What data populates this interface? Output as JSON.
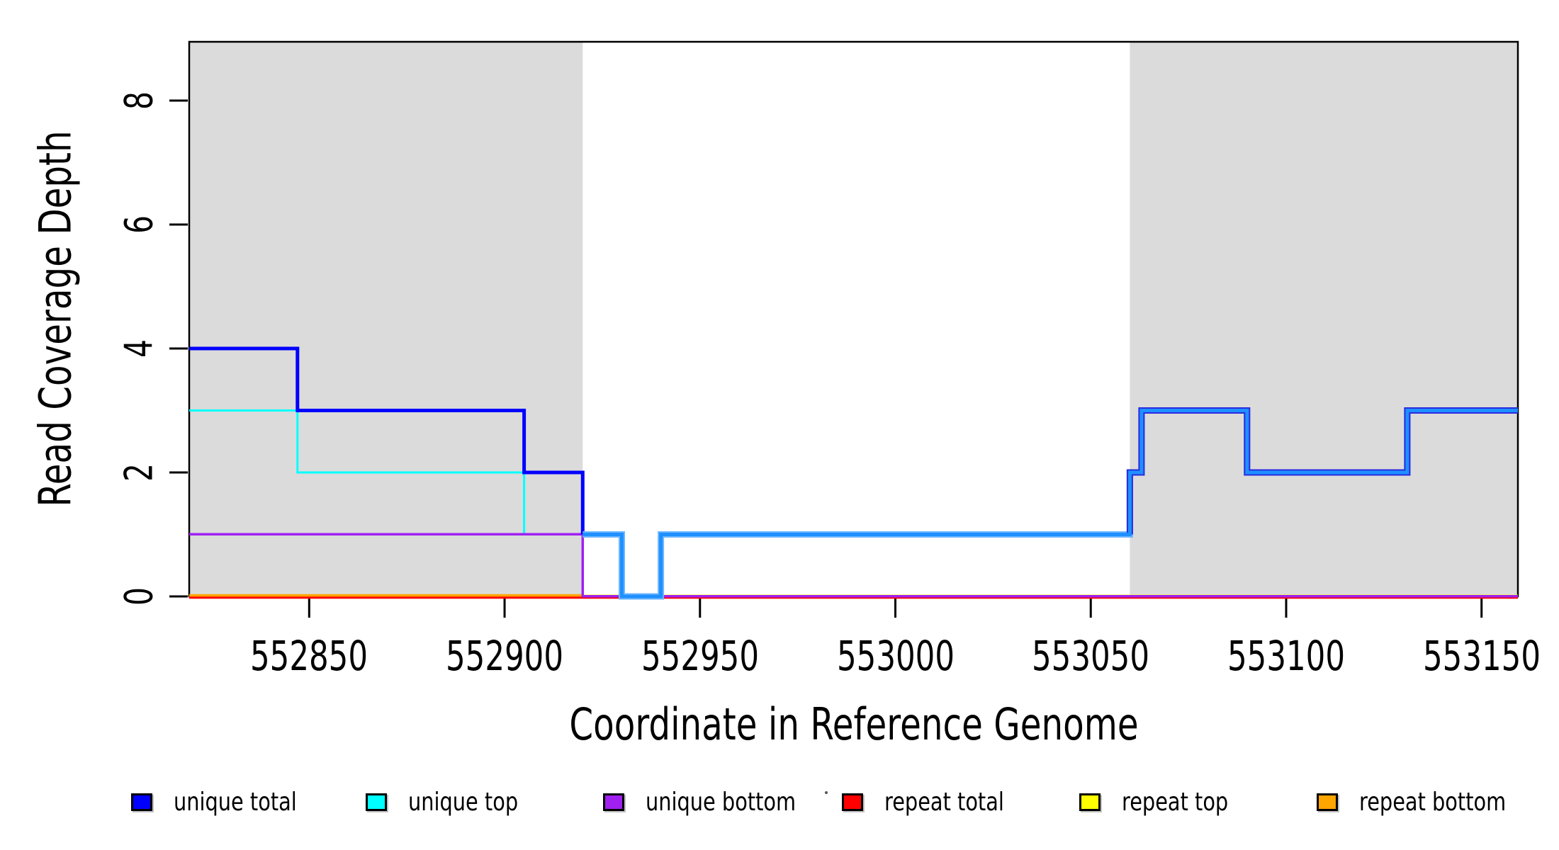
{
  "chart_data": {
    "type": "line",
    "subtype": "step-coverage-plot",
    "title": "",
    "xlabel": "Coordinate in Reference Genome",
    "ylabel": "Read Coverage Depth",
    "x_ticks": [
      552850,
      552900,
      552950,
      553000,
      553050,
      553100,
      553150
    ],
    "y_ticks": [
      0,
      2,
      4,
      6,
      8
    ],
    "xlim": [
      552819.3,
      553159.3
    ],
    "ylim": [
      0,
      8.95
    ],
    "grid": false,
    "legend_position": "bottom",
    "background_color": "#FFFFFF",
    "shaded_region_color": "#DBDBDB",
    "shaded_regions": [
      {
        "x_from": 552819.3,
        "x_to": 552920
      },
      {
        "x_from": 553060,
        "x_to": 553159.3
      }
    ],
    "series": [
      {
        "name": "repeat total",
        "color": "#FF0000",
        "width": 5,
        "step_points": [
          [
            552819.3,
            0
          ]
        ],
        "x_end": 553159.3
      },
      {
        "name": "repeat top",
        "color": "#FFFF00",
        "width": 2.5,
        "step_points": [
          [
            552819.3,
            0
          ]
        ],
        "x_end": 553159.3
      },
      {
        "name": "repeat bottom",
        "color": "#FFA500",
        "width": 3.5,
        "step_points": [
          [
            552819.3,
            0
          ]
        ],
        "x_end": 552920
      },
      {
        "name": "unique top",
        "color": "#00FFFF",
        "width": 3,
        "step_points": [
          [
            552819.3,
            3
          ],
          [
            552847,
            2
          ],
          [
            552905,
            1
          ],
          [
            552920,
            0
          ]
        ],
        "x_end": 552920
      },
      {
        "name": "unique bottom",
        "color": "#A020F0",
        "width": 3.5,
        "step_points": [
          [
            552819.3,
            1
          ],
          [
            552920,
            0
          ]
        ],
        "x_end": 553159.3
      },
      {
        "name": "unique total",
        "color": "#0000FF",
        "width": 5,
        "step_points": [
          [
            552819.3,
            4
          ],
          [
            552847,
            3
          ],
          [
            552905,
            2
          ],
          [
            552920,
            1
          ]
        ],
        "x_end": 552920
      },
      {
        "name": "",
        "color": "#1E90FF",
        "width": 5,
        "halo_color": "#6FB6FF",
        "halo_width": 9,
        "underlay_from": 553060,
        "underlay_color": "#2A2AE0",
        "underlay_width": 9,
        "step_points": [
          [
            552920,
            1
          ],
          [
            552930,
            0
          ],
          [
            552940,
            1
          ],
          [
            553060,
            2
          ],
          [
            553063,
            3
          ],
          [
            553090,
            2
          ],
          [
            553131,
            3
          ]
        ],
        "x_end": 553159.3
      }
    ]
  },
  "legend": {
    "items": [
      {
        "label": "unique total",
        "color": "#0000FF"
      },
      {
        "label": "unique top",
        "color": "#00FFFF"
      },
      {
        "label": "unique bottom",
        "color": "#A020F0"
      },
      {
        "label": "repeat total",
        "color": "#FF0000"
      },
      {
        "label": "repeat top",
        "color": "#FFFF00"
      },
      {
        "label": "repeat bottom",
        "color": "#FFA500"
      }
    ]
  }
}
